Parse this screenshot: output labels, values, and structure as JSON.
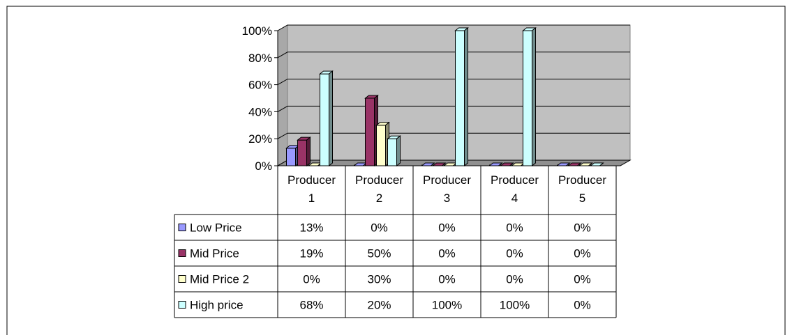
{
  "chart_data": {
    "type": "bar",
    "categories": [
      "Producer\n1",
      "Producer\n2",
      "Producer\n3",
      "Producer\n4",
      "Producer\n5"
    ],
    "y_ticks": [
      "0%",
      "20%",
      "40%",
      "60%",
      "80%",
      "100%"
    ],
    "ylim": [
      0,
      100
    ],
    "series": [
      {
        "name": "Low Price",
        "values": [
          13,
          0,
          0,
          0,
          0
        ],
        "labels": [
          "13%",
          "0%",
          "0%",
          "0%",
          "0%"
        ],
        "color": "#9999ff"
      },
      {
        "name": "Mid Price",
        "values": [
          19,
          50,
          0,
          0,
          0
        ],
        "labels": [
          "19%",
          "50%",
          "0%",
          "0%",
          "0%"
        ],
        "color": "#993366"
      },
      {
        "name": "Mid Price 2",
        "values": [
          0,
          30,
          0,
          0,
          0
        ],
        "labels": [
          "0%",
          "30%",
          "0%",
          "0%",
          "0%"
        ],
        "color": "#ffffcc"
      },
      {
        "name": "High price",
        "values": [
          68,
          20,
          100,
          100,
          0
        ],
        "labels": [
          "68%",
          "20%",
          "100%",
          "100%",
          "0%"
        ],
        "color": "#ccffff"
      }
    ],
    "grid": true,
    "legend": "table-left",
    "wall_color": "#c0c0c0"
  }
}
